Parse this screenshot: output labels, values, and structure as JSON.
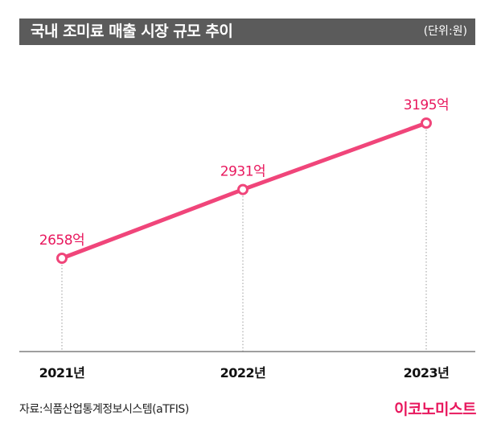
{
  "header": {
    "title": "국내 조미료 매출 시장 규모 추이",
    "unit": "(단위:원)"
  },
  "footer": {
    "source": "자료:식품산업통계정보시스템(aTFIS)",
    "brand": "이코노미스트"
  },
  "colors": {
    "line": "#f0457a",
    "label": "#e8175d",
    "title_bg": "#5b5b5b"
  },
  "chart_data": {
    "type": "line",
    "title": "국내 조미료 매출 시장 규모 추이",
    "categories": [
      "2021년",
      "2022년",
      "2023년"
    ],
    "series": [
      {
        "values": [
          2658,
          2931,
          3195
        ]
      }
    ],
    "data_labels": [
      "2658억",
      "2931억",
      "3195억"
    ],
    "ylim": [
      2300,
      3400
    ],
    "grid": false,
    "legend": "none"
  }
}
